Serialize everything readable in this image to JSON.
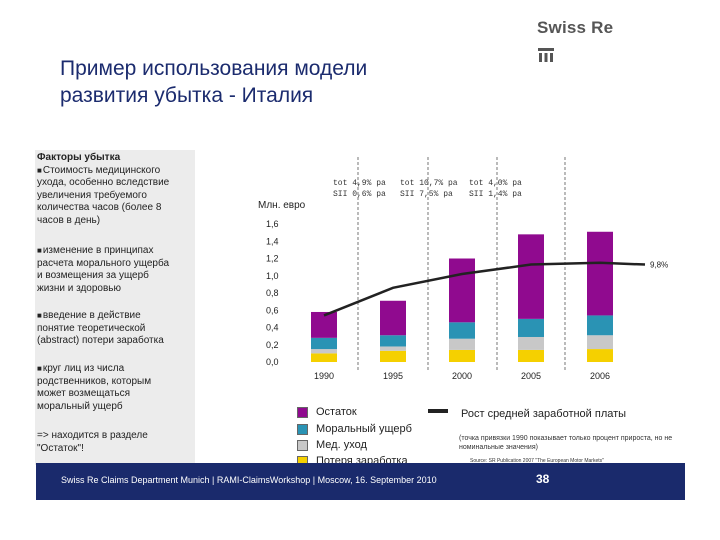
{
  "logo": {
    "text": "Swiss Re"
  },
  "title": {
    "line1": "Пример использования модели",
    "line2": "развития убытка  - Италия"
  },
  "sidebar": {
    "heading": "Факторы убытка",
    "factor1": [
      "Стоимость медицинского",
      "ухода, особенно вследствие",
      "увеличения требуемого",
      "количества часов (более 8",
      "часов в день)"
    ],
    "factor2": [
      "изменение в принципах",
      "расчета морального ущерба",
      "и возмещения за ущерб",
      "жизни и здоровью"
    ],
    "factor3": [
      "введение в действие",
      "понятие теоретической",
      "(abstract) потери заработка"
    ],
    "factor4": [
      "круг лиц из числа",
      "родственников, которым",
      "может возмещаться",
      "моральный ущерб"
    ],
    "note": [
      "=> находится в разделе",
      "\"Остаток\"!"
    ]
  },
  "growth": [
    {
      "l1": "tot  4,9% pa",
      "l2": "SII  0,6% pa"
    },
    {
      "l1": "tot  10,7% pa",
      "l2": "SII  7,5% pa"
    },
    {
      "l1": "tot  4,0% pa",
      "l2": "SII  1,4% pa"
    }
  ],
  "line_end_label": "9,8%",
  "chart_data": {
    "type": "bar",
    "stacked": true,
    "ylabel": "Млн. евро",
    "ylim": [
      0,
      1.6
    ],
    "yticks": [
      "0,0",
      "0,2",
      "0,4",
      "0,6",
      "0,8",
      "1,0",
      "1,2",
      "1,4",
      "1,6"
    ],
    "ytick_values": [
      0,
      0.2,
      0.4,
      0.6,
      0.8,
      1.0,
      1.2,
      1.4,
      1.6
    ],
    "categories": [
      "1990",
      "1995",
      "2000",
      "2005",
      "2006"
    ],
    "series": [
      {
        "name": "Потеря заработка",
        "color": "#f5d000",
        "values": [
          0.1,
          0.13,
          0.14,
          0.14,
          0.15
        ]
      },
      {
        "name": "Мед. уход",
        "color": "#c8c8c8",
        "values": [
          0.05,
          0.05,
          0.13,
          0.15,
          0.16
        ]
      },
      {
        "name": "Моральный ущерб",
        "color": "#2a93b4",
        "values": [
          0.13,
          0.13,
          0.19,
          0.21,
          0.23
        ]
      },
      {
        "name": "Остаток",
        "color": "#900a8f",
        "values": [
          0.3,
          0.4,
          0.74,
          0.98,
          0.97
        ]
      }
    ],
    "line": {
      "name": "Рост средней заработной платы",
      "x": [
        1990,
        1995,
        2000,
        2005,
        2006
      ],
      "values": [
        0.54,
        0.86,
        1.02,
        1.13,
        1.15
      ],
      "extend_to": 1.13
    },
    "grid": false
  },
  "legend": [
    {
      "label": "Остаток",
      "color": "#900a8f"
    },
    {
      "label": "Моральный ущерб",
      "color": "#2a93b4"
    },
    {
      "label": "Мед. уход",
      "color": "#c8c8c8"
    },
    {
      "label": "Потеря заработка",
      "color": "#f5d000"
    }
  ],
  "wage_legend": {
    "title": "Рост средней заработной платы",
    "note": "(точка привязки 1990 показывает только процент прироста, но не номинальные значения)"
  },
  "source": "Source: SR Publication 2007 \"The European Motor Markets\"",
  "footer": {
    "text": "Swiss Re Claims Department Munich | RAMI-ClaimsWorkshop | Moscow, 16. September 2010",
    "page": "38"
  }
}
